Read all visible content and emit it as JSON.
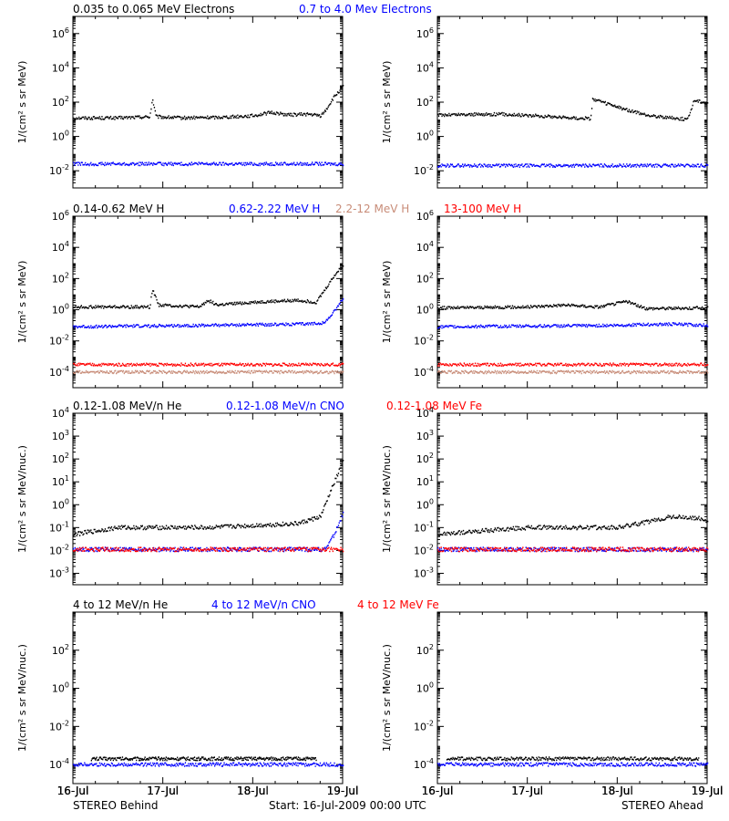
{
  "colors": {
    "black": "#000000",
    "blue": "#0000ff",
    "red": "#ff0000",
    "tan": "#c88c78"
  },
  "footer": {
    "left": "STEREO Behind",
    "center": "Start: 16-Jul-2009 00:00 UTC",
    "right": "STEREO Ahead"
  },
  "x_axis": {
    "tick_labels": [
      "16-Jul",
      "17-Jul",
      "18-Jul",
      "19-Jul"
    ],
    "range_days": [
      0,
      3
    ]
  },
  "rows": [
    {
      "legend": [
        {
          "text": "0.035 to 0.065 MeV Electrons",
          "color": "black"
        },
        {
          "text": "0.7 to 4.0 Mev Electrons",
          "color": "blue"
        }
      ],
      "ylabel": "1/(cm² s sr MeV)",
      "yrange_log10": [
        -3,
        7
      ],
      "yticks_exp": [
        -2,
        0,
        2,
        4,
        6
      ]
    },
    {
      "legend": [
        {
          "text": "0.14-0.62 MeV H",
          "color": "black"
        },
        {
          "text": "0.62-2.22 MeV H",
          "color": "blue"
        },
        {
          "text": "2.2-12 MeV H",
          "color": "tan"
        },
        {
          "text": "13-100 MeV H",
          "color": "red"
        }
      ],
      "ylabel": "1/(cm² s sr MeV)",
      "yrange_log10": [
        -5,
        6
      ],
      "yticks_exp": [
        -4,
        -2,
        0,
        2,
        4,
        6
      ]
    },
    {
      "legend": [
        {
          "text": "0.12-1.08 MeV/n He",
          "color": "black"
        },
        {
          "text": "0.12-1.08 MeV/n CNO",
          "color": "blue"
        },
        {
          "text": "0.12-1.08 MeV Fe",
          "color": "red"
        }
      ],
      "ylabel": "1/(cm² s sr MeV/nuc.)",
      "yrange_log10": [
        -3.5,
        4
      ],
      "yticks_exp": [
        -3,
        -2,
        -1,
        0,
        1,
        2,
        3,
        4
      ]
    },
    {
      "legend": [
        {
          "text": "4 to 12 MeV/n He",
          "color": "black"
        },
        {
          "text": "4 to 12 MeV/n CNO",
          "color": "blue"
        },
        {
          "text": "4 to 12 MeV Fe",
          "color": "red"
        }
      ],
      "ylabel": "1/(cm² s sr MeV/nuc.)",
      "yrange_log10": [
        -5,
        4
      ],
      "yticks_exp": [
        -4,
        -2,
        0,
        2
      ]
    }
  ],
  "chart_data": [
    {
      "type": "scatter",
      "spacecraft": "STEREO Behind",
      "ylog": true,
      "series": [
        {
          "name": "0.035 to 0.065 MeV Electrons",
          "color": "black",
          "points": [
            [
              0,
              12
            ],
            [
              0.5,
              12
            ],
            [
              0.85,
              14
            ],
            [
              0.88,
              150
            ],
            [
              0.92,
              14
            ],
            [
              1.2,
              12
            ],
            [
              1.6,
              13
            ],
            [
              2.0,
              16
            ],
            [
              2.2,
              25
            ],
            [
              2.4,
              18
            ],
            [
              2.6,
              20
            ],
            [
              2.75,
              16
            ],
            [
              2.8,
              30
            ],
            [
              2.9,
              200
            ],
            [
              3.0,
              800
            ]
          ]
        },
        {
          "name": "0.7 to 4.0 Mev Electrons",
          "color": "blue",
          "points": [
            [
              0,
              0.025
            ],
            [
              1.0,
              0.025
            ],
            [
              2.0,
              0.025
            ],
            [
              3.0,
              0.025
            ]
          ]
        }
      ]
    },
    {
      "type": "scatter",
      "spacecraft": "STEREO Ahead",
      "ylog": true,
      "series": [
        {
          "name": "0.035 to 0.065 MeV Electrons",
          "color": "black",
          "points": [
            [
              0,
              18
            ],
            [
              0.7,
              20
            ],
            [
              1.0,
              17
            ],
            [
              1.5,
              12
            ],
            [
              1.7,
              11
            ],
            [
              1.72,
              150
            ],
            [
              2.0,
              50
            ],
            [
              2.3,
              18
            ],
            [
              2.6,
              12
            ],
            [
              2.78,
              10
            ],
            [
              2.85,
              130
            ],
            [
              3.0,
              90
            ]
          ]
        },
        {
          "name": "0.7 to 4.0 Mev Electrons",
          "color": "blue",
          "points": [
            [
              0,
              0.02
            ],
            [
              1.5,
              0.02
            ],
            [
              3.0,
              0.02
            ]
          ]
        }
      ]
    },
    {
      "type": "scatter",
      "spacecraft": "STEREO Behind",
      "ylog": true,
      "series": [
        {
          "name": "0.14-0.62 MeV H",
          "color": "black",
          "points": [
            [
              0,
              1.5
            ],
            [
              0.85,
              1.5
            ],
            [
              0.88,
              20
            ],
            [
              0.95,
              2
            ],
            [
              1.4,
              1.5
            ],
            [
              1.5,
              4
            ],
            [
              1.6,
              2
            ],
            [
              2.0,
              3
            ],
            [
              2.5,
              4
            ],
            [
              2.7,
              3
            ],
            [
              2.8,
              20
            ],
            [
              2.9,
              150
            ],
            [
              3.0,
              700
            ]
          ]
        },
        {
          "name": "0.62-2.22 MeV H",
          "color": "blue",
          "points": [
            [
              0,
              0.08
            ],
            [
              1.5,
              0.1
            ],
            [
              2.6,
              0.12
            ],
            [
              2.8,
              0.15
            ],
            [
              2.9,
              0.8
            ],
            [
              3.0,
              5
            ]
          ]
        },
        {
          "name": "2.2-12 MeV H",
          "color": "tan",
          "points": [
            [
              0,
              0.0001
            ],
            [
              3.0,
              0.0001
            ]
          ]
        },
        {
          "name": "13-100 MeV H",
          "color": "red",
          "points": [
            [
              0,
              0.0003
            ],
            [
              3.0,
              0.0003
            ]
          ]
        }
      ]
    },
    {
      "type": "scatter",
      "spacecraft": "STEREO Ahead",
      "ylog": true,
      "series": [
        {
          "name": "0.14-0.62 MeV H",
          "color": "black",
          "points": [
            [
              0,
              1.3
            ],
            [
              1.0,
              1.5
            ],
            [
              1.4,
              2.0
            ],
            [
              1.8,
              1.5
            ],
            [
              2.1,
              3.5
            ],
            [
              2.3,
              1.2
            ],
            [
              3.0,
              1.3
            ]
          ]
        },
        {
          "name": "0.62-2.22 MeV H",
          "color": "blue",
          "points": [
            [
              0,
              0.08
            ],
            [
              2.0,
              0.1
            ],
            [
              2.6,
              0.12
            ],
            [
              3.0,
              0.1
            ]
          ]
        },
        {
          "name": "2.2-12 MeV H",
          "color": "tan",
          "points": [
            [
              0,
              0.0001
            ],
            [
              3.0,
              0.0001
            ]
          ]
        },
        {
          "name": "13-100 MeV H",
          "color": "red",
          "points": [
            [
              0,
              0.0003
            ],
            [
              3.0,
              0.0003
            ]
          ]
        }
      ]
    },
    {
      "type": "scatter",
      "spacecraft": "STEREO Behind",
      "ylog": true,
      "series": [
        {
          "name": "0.12-1.08 MeV/n He",
          "color": "black",
          "points": [
            [
              0,
              0.05
            ],
            [
              0.5,
              0.1
            ],
            [
              1.5,
              0.1
            ],
            [
              2.5,
              0.15
            ],
            [
              2.75,
              0.3
            ],
            [
              2.85,
              3
            ],
            [
              3.0,
              80
            ]
          ]
        },
        {
          "name": "0.12-1.08 MeV/n CNO",
          "color": "blue",
          "points": [
            [
              0,
              0.011
            ],
            [
              2.8,
              0.011
            ],
            [
              2.9,
              0.05
            ],
            [
              3.0,
              0.4
            ]
          ]
        },
        {
          "name": "0.12-1.08 MeV Fe",
          "color": "red",
          "points": [
            [
              0,
              0.011
            ],
            [
              3.0,
              0.011
            ]
          ]
        }
      ]
    },
    {
      "type": "scatter",
      "spacecraft": "STEREO Ahead",
      "ylog": true,
      "series": [
        {
          "name": "0.12-1.08 MeV/n He",
          "color": "black",
          "points": [
            [
              0,
              0.05
            ],
            [
              1.0,
              0.1
            ],
            [
              2.0,
              0.1
            ],
            [
              2.4,
              0.2
            ],
            [
              2.6,
              0.3
            ],
            [
              2.9,
              0.25
            ],
            [
              3.0,
              0.2
            ]
          ]
        },
        {
          "name": "0.12-1.08 MeV/n CNO",
          "color": "blue",
          "points": [
            [
              0,
              0.011
            ],
            [
              3.0,
              0.011
            ]
          ]
        },
        {
          "name": "0.12-1.08 MeV Fe",
          "color": "red",
          "points": [
            [
              0,
              0.011
            ],
            [
              3.0,
              0.011
            ]
          ]
        }
      ]
    },
    {
      "type": "scatter",
      "spacecraft": "STEREO Behind",
      "ylog": true,
      "series": [
        {
          "name": "4 to 12 MeV/n He",
          "color": "black",
          "points": [
            [
              0.2,
              0.0002
            ],
            [
              0.9,
              0.0002
            ],
            [
              1.5,
              0.0002
            ],
            [
              2.2,
              0.0002
            ],
            [
              2.7,
              0.0002
            ]
          ]
        },
        {
          "name": "4 to 12 MeV/n CNO",
          "color": "blue",
          "points": [
            [
              0,
              0.0001
            ],
            [
              3.0,
              0.0001
            ]
          ]
        },
        {
          "name": "4 to 12 MeV Fe",
          "color": "red",
          "points": []
        }
      ]
    },
    {
      "type": "scatter",
      "spacecraft": "STEREO Ahead",
      "ylog": true,
      "series": [
        {
          "name": "4 to 12 MeV/n He",
          "color": "black",
          "points": [
            [
              0.1,
              0.0002
            ],
            [
              0.8,
              0.0002
            ],
            [
              1.6,
              0.0002
            ],
            [
              2.3,
              0.0002
            ],
            [
              2.9,
              0.0002
            ]
          ]
        },
        {
          "name": "4 to 12 MeV/n CNO",
          "color": "blue",
          "points": [
            [
              0,
              0.0001
            ],
            [
              3.0,
              0.0001
            ]
          ]
        },
        {
          "name": "4 to 12 MeV Fe",
          "color": "red",
          "points": []
        }
      ]
    }
  ]
}
